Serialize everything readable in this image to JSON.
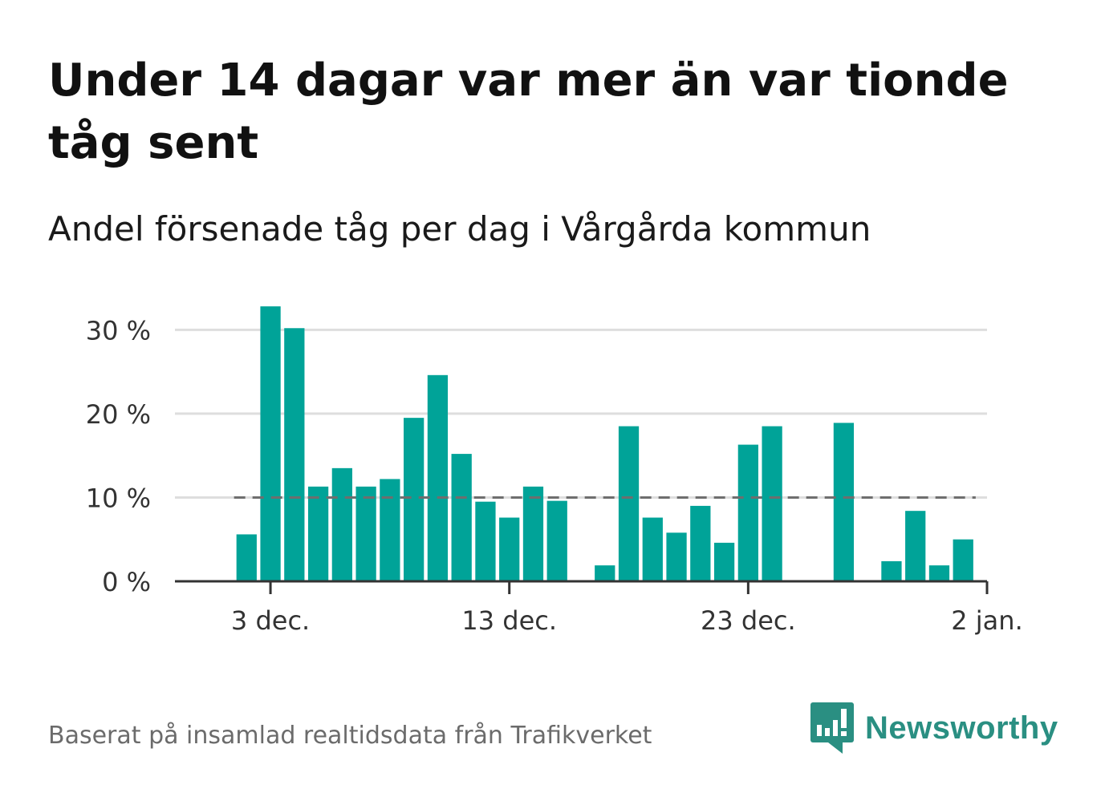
{
  "title": "Under 14 dagar var mer än var tionde tåg sent",
  "subtitle": "Andel försenade tåg per dag i Vårgårda kommun",
  "source": "Baserat på insamlad realtidsdata från Trafikverket",
  "brand": {
    "name": "Newsworthy",
    "color": "#2a8f82"
  },
  "chart_data": {
    "type": "bar",
    "title": "Under 14 dagar var mer än var tionde tåg sent",
    "subtitle": "Andel försenade tåg per dag i Vårgårda kommun",
    "x_unit": "day",
    "x": [
      "2021-12-02",
      "2021-12-03",
      "2021-12-04",
      "2021-12-05",
      "2021-12-06",
      "2021-12-07",
      "2021-12-08",
      "2021-12-09",
      "2021-12-10",
      "2021-12-11",
      "2021-12-12",
      "2021-12-13",
      "2021-12-14",
      "2021-12-15",
      "2021-12-16",
      "2021-12-17",
      "2021-12-18",
      "2021-12-19",
      "2021-12-20",
      "2021-12-21",
      "2021-12-22",
      "2021-12-23",
      "2021-12-24",
      "2021-12-25",
      "2021-12-26",
      "2021-12-27",
      "2021-12-28",
      "2021-12-29",
      "2021-12-30",
      "2021-12-31",
      "2022-01-01"
    ],
    "values": [
      5.6,
      32.8,
      30.2,
      11.3,
      13.5,
      11.3,
      12.2,
      19.5,
      24.6,
      15.2,
      9.5,
      7.6,
      11.3,
      9.6,
      0,
      1.9,
      18.5,
      7.6,
      5.8,
      9.0,
      4.6,
      16.3,
      18.5,
      0,
      0,
      18.9,
      0,
      2.4,
      8.4,
      1.9,
      5.0
    ],
    "reference_line": {
      "value": 10,
      "style": "dashed"
    },
    "xlim": [
      "2021-11-29",
      "2022-01-02"
    ],
    "ylim": [
      0,
      33
    ],
    "y_ticks": [
      0,
      10,
      20,
      30
    ],
    "y_tick_labels": [
      "0 %",
      "10 %",
      "20 %",
      "30 %"
    ],
    "x_ticks": [
      "2021-12-03",
      "2021-12-13",
      "2021-12-23",
      "2022-01-02"
    ],
    "x_tick_labels": [
      "3 dec.",
      "13 dec.",
      "23 dec.",
      "2 jan."
    ],
    "grid": true,
    "bar_color": "#00a398"
  }
}
